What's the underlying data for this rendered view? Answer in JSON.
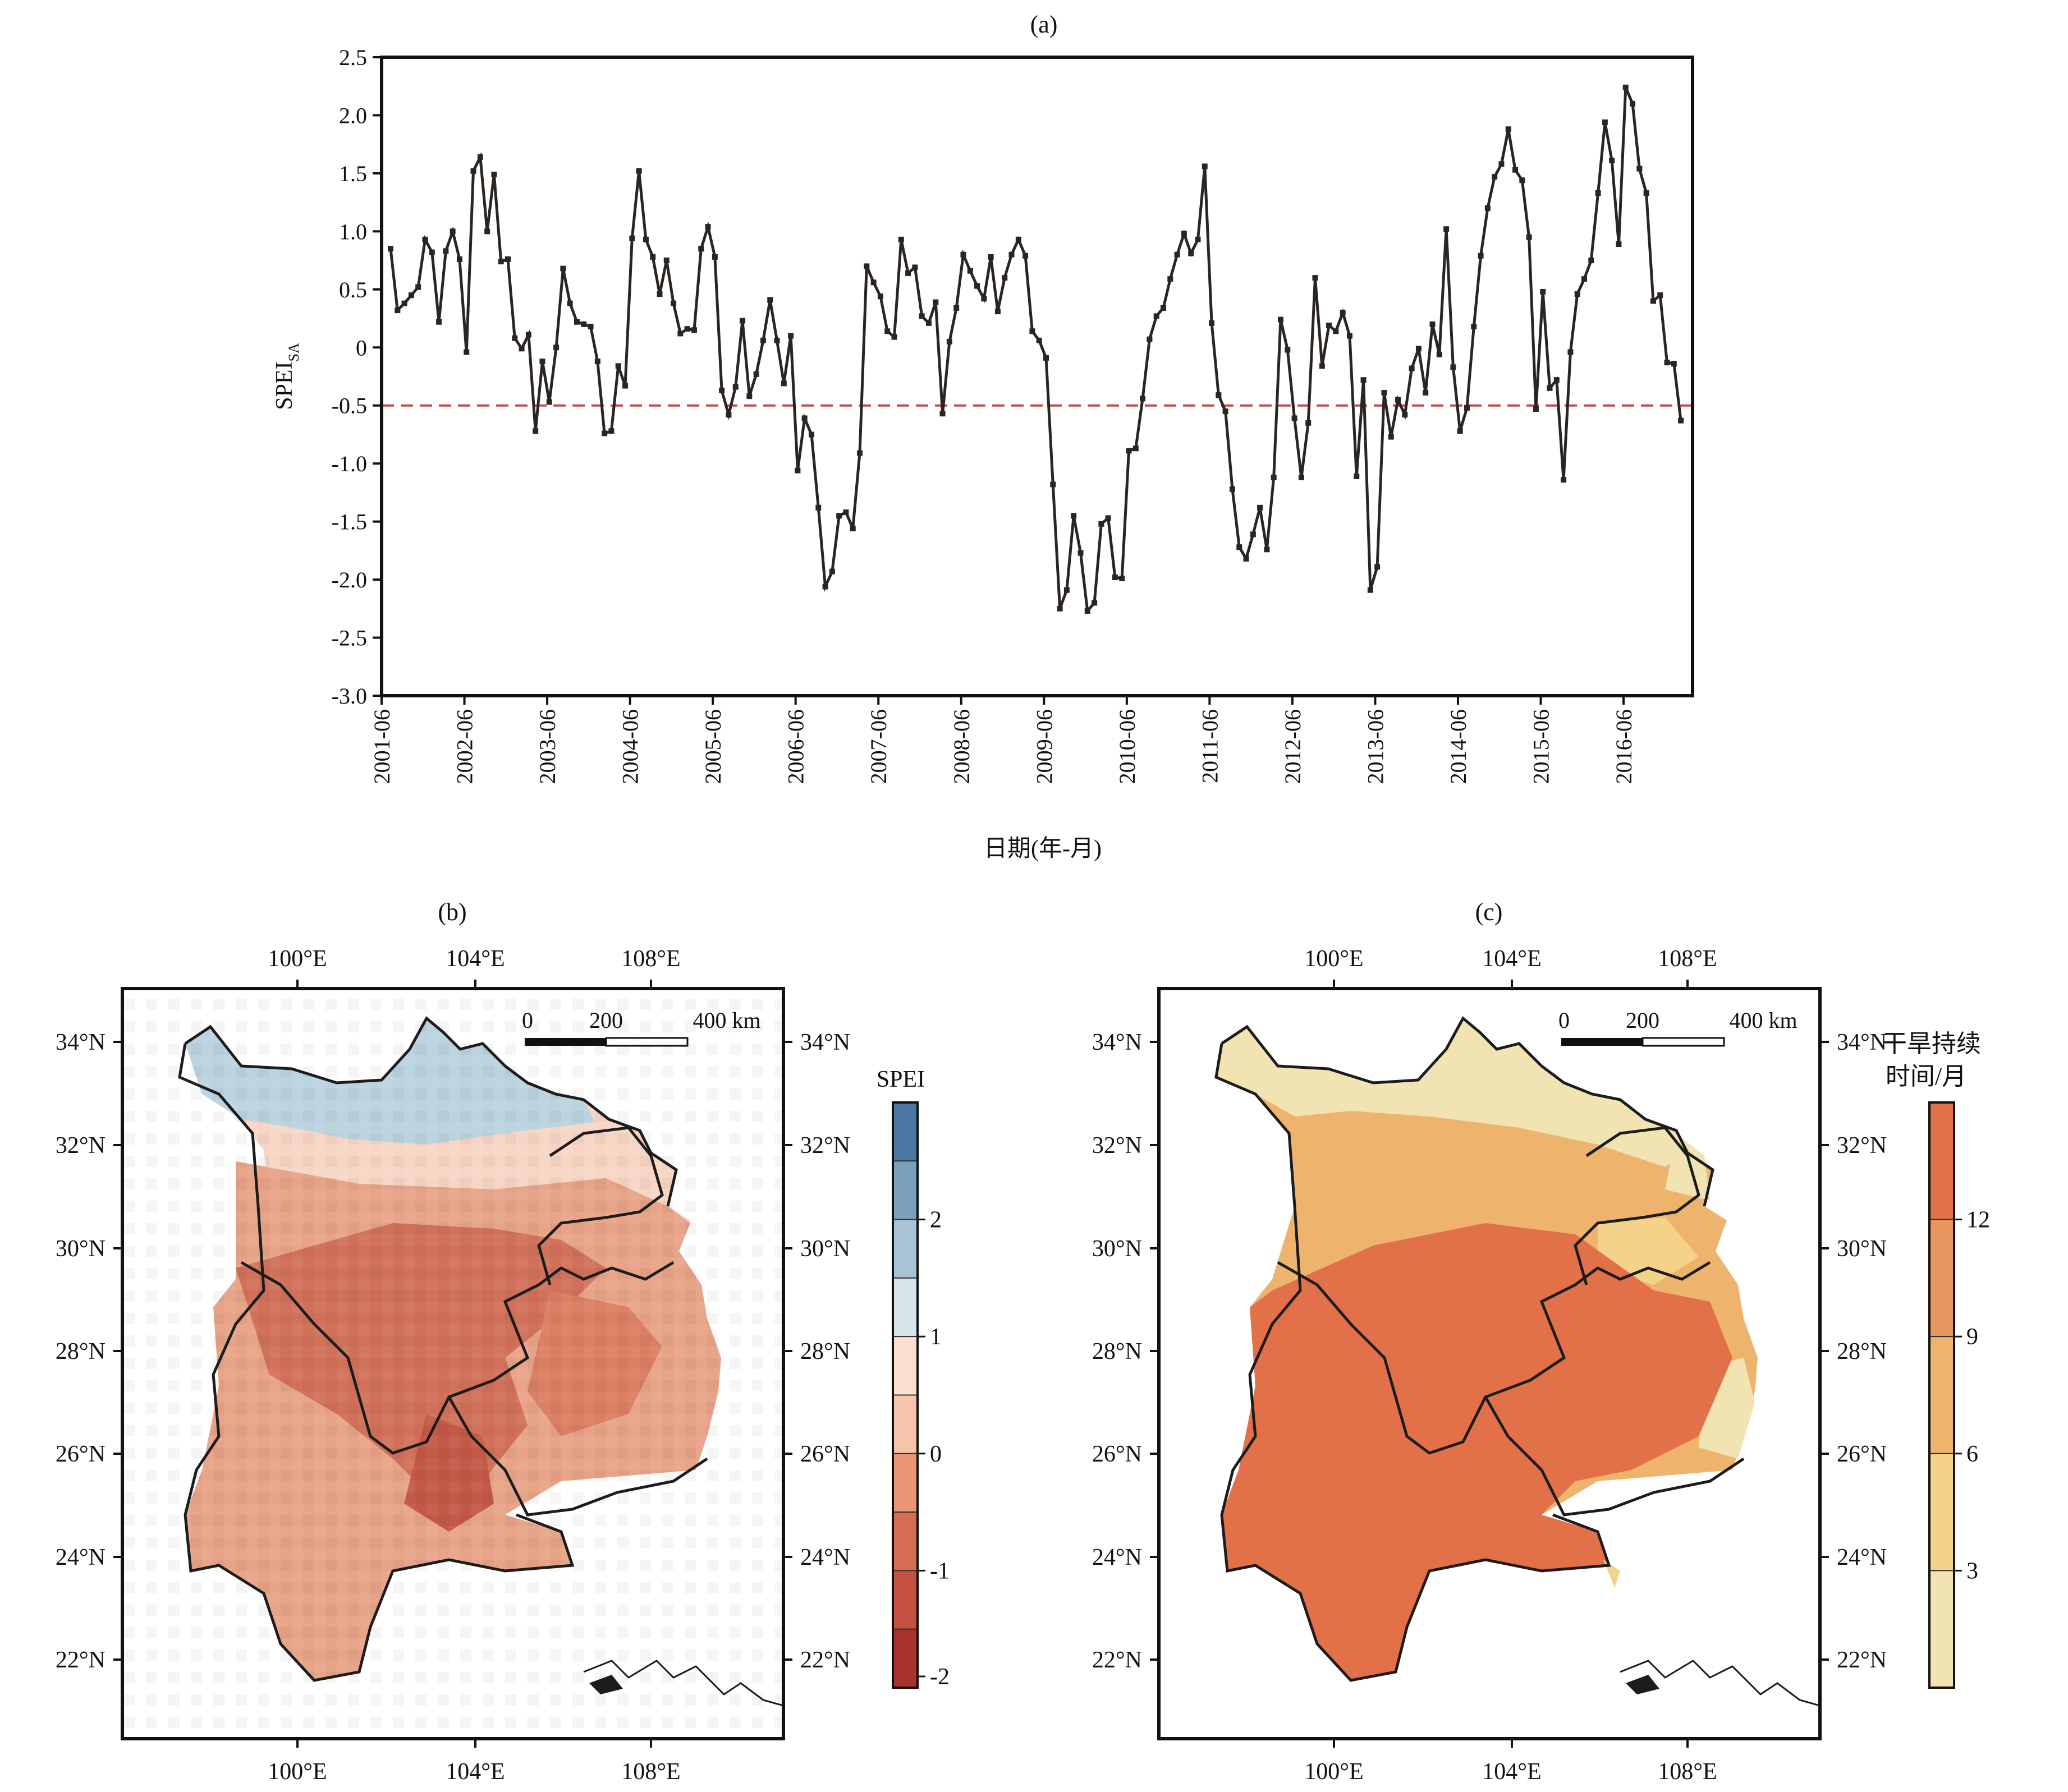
{
  "chart_data": [
    {
      "panel": "(a)",
      "type": "line",
      "ylabel_main": "SPEI",
      "ylabel_sub": "SA",
      "xlabel": "日期(年-月)",
      "ylim": [
        -3.0,
        2.5
      ],
      "yticks": [
        "2.5",
        "2.0",
        "1.5",
        "1.0",
        "0.5",
        "0",
        "-0.5",
        "-1.0",
        "-1.5",
        "-2.0",
        "-2.5",
        "-3.0"
      ],
      "xticks": [
        "2001-06",
        "2002-06",
        "2003-06",
        "2004-06",
        "2005-06",
        "2006-06",
        "2007-06",
        "2008-06",
        "2009-06",
        "2010-06",
        "2011-06",
        "2012-06",
        "2013-06",
        "2014-06",
        "2015-06",
        "2016-06"
      ],
      "threshold": -0.5,
      "line_color": "#2b2522",
      "threshold_color": "#c0504d",
      "series": [
        {
          "values": [
            0.85,
            0.32,
            0.38,
            0.45,
            0.52,
            0.93,
            0.82,
            0.22,
            0.83,
            1.0,
            0.76,
            -0.04,
            1.52,
            1.64,
            1.0,
            1.49,
            0.74,
            0.76,
            0.08,
            -0.01,
            0.11,
            -0.72,
            -0.12,
            -0.47,
            0.0,
            0.68,
            0.38,
            0.22,
            0.2,
            0.18,
            -0.12,
            -0.74,
            -0.72,
            -0.16,
            -0.33,
            0.94,
            1.52,
            0.93,
            0.78,
            0.46,
            0.75,
            0.38,
            0.12,
            0.16,
            0.15,
            0.85,
            1.04,
            0.78,
            -0.37,
            -0.58,
            -0.34,
            0.23,
            -0.42,
            -0.23,
            0.06,
            0.41,
            0.06,
            -0.31,
            0.1,
            -1.06,
            -0.61,
            -0.75,
            -1.38,
            -2.06,
            -1.93,
            -1.45,
            -1.42,
            -1.56,
            -0.91,
            0.7,
            0.56,
            0.44,
            0.14,
            0.09,
            0.93,
            0.64,
            0.69,
            0.27,
            0.21,
            0.39,
            -0.57,
            0.05,
            0.34,
            0.8,
            0.66,
            0.53,
            0.42,
            0.78,
            0.31,
            0.6,
            0.8,
            0.93,
            0.79,
            0.14,
            0.06,
            -0.09,
            -1.18,
            -2.25,
            -2.09,
            -1.45,
            -1.77,
            -2.27,
            -2.2,
            -1.52,
            -1.47,
            -1.98,
            -1.99,
            -0.89,
            -0.87,
            -0.44,
            0.07,
            0.27,
            0.34,
            0.59,
            0.8,
            0.98,
            0.81,
            0.93,
            1.56,
            0.21,
            -0.41,
            -0.55,
            -1.22,
            -1.72,
            -1.82,
            -1.61,
            -1.38,
            -1.74,
            -1.12,
            0.24,
            -0.02,
            -0.61,
            -1.12,
            -0.65,
            0.6,
            -0.16,
            0.19,
            0.14,
            0.3,
            0.1,
            -1.11,
            -0.28,
            -2.09,
            -1.89,
            -0.39,
            -0.77,
            -0.45,
            -0.58,
            -0.18,
            -0.01,
            -0.39,
            0.2,
            -0.06,
            1.02,
            -0.17,
            -0.72,
            -0.52,
            0.18,
            0.79,
            1.2,
            1.47,
            1.58,
            1.88,
            1.53,
            1.44,
            0.95,
            -0.53,
            0.48,
            -0.35,
            -0.28,
            -1.14,
            -0.04,
            0.46,
            0.59,
            0.75,
            1.33,
            1.94,
            1.61,
            0.89,
            2.24,
            2.1,
            1.54,
            1.33,
            0.4,
            0.45,
            -0.13,
            -0.14,
            -0.63
          ]
        }
      ]
    },
    {
      "panel": "(b)",
      "type": "heatmap",
      "legend_title": "SPEI",
      "colorbar_ticks": [
        "2",
        "1",
        "0",
        "-1",
        "-2"
      ],
      "colorbar_colors": [
        "#4a78a2",
        "#7aa0bd",
        "#a8c4d4",
        "#d8e5ea",
        "#fbe0d2",
        "#f6c4ab",
        "#e99675",
        "#d66e54",
        "#c4503f",
        "#a8322e"
      ],
      "lon_ticks": [
        "100°E",
        "104°E",
        "108°E"
      ],
      "lat_ticks": [
        "34°N",
        "32°N",
        "30°N",
        "28°N",
        "26°N",
        "24°N",
        "22°N"
      ],
      "scale_labels": [
        "0",
        "200",
        "400 km"
      ]
    },
    {
      "panel": "(c)",
      "type": "heatmap",
      "legend_title_lines": [
        "干旱持续",
        "时间/月"
      ],
      "colorbar_ticks": [
        "12",
        "9",
        "6",
        "3"
      ],
      "colorbar_colors": [
        "#e2714a",
        "#e99760",
        "#eeb46d",
        "#f5d28a",
        "#f1e3b2"
      ],
      "lon_ticks": [
        "100°E",
        "104°E",
        "108°E"
      ],
      "lat_ticks": [
        "34°N",
        "32°N",
        "30°N",
        "28°N",
        "26°N",
        "24°N",
        "22°N"
      ],
      "scale_labels": [
        "0",
        "200",
        "400 km"
      ]
    }
  ]
}
